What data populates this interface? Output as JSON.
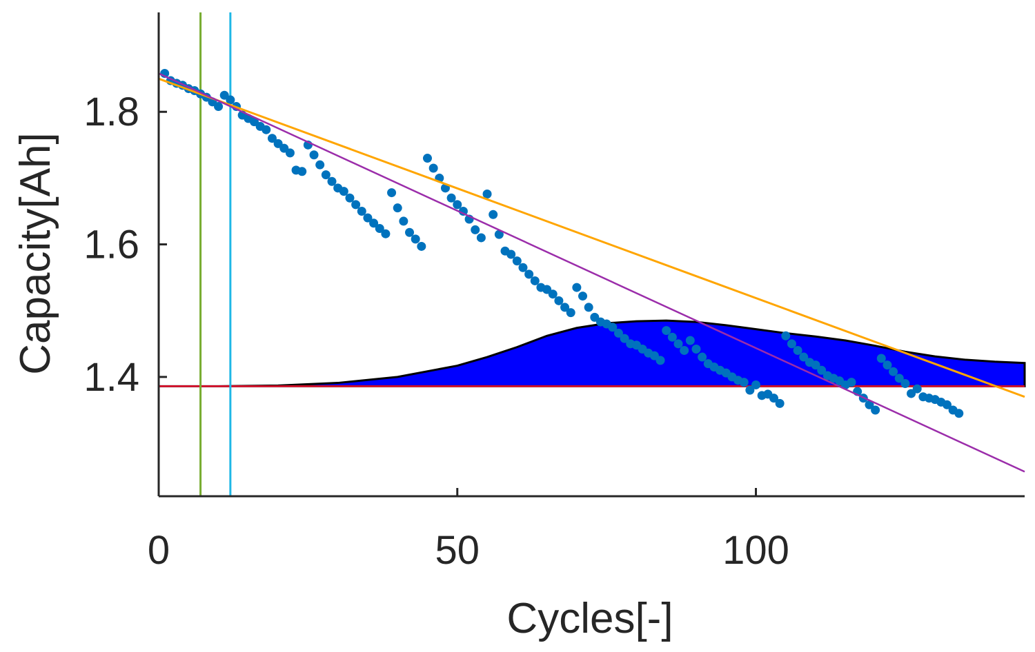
{
  "chart_data": {
    "type": "scatter",
    "xlabel": "Cycles[-]",
    "ylabel": "Capacity[Ah]",
    "xlim": [
      0,
      145
    ],
    "ylim": [
      1.22,
      1.95
    ],
    "xticks": [
      0,
      50,
      100
    ],
    "xtick_labels": [
      "0",
      "50",
      "100"
    ],
    "yticks": [
      1.4,
      1.6,
      1.8
    ],
    "ytick_labels": [
      "1.4",
      "1.6",
      "1.8"
    ],
    "grid": false,
    "colors": {
      "points": "#0072BD",
      "fit_orange": "#FFA500",
      "fit_purple": "#9B2DAA",
      "threshold": "#E8112D",
      "area_fill": "#0000FF",
      "area_edge": "#000000",
      "vline_green": "#77AC30",
      "vline_cyan": "#1EB7E6",
      "axis": "#262626"
    },
    "series": [
      {
        "name": "measured capacity",
        "kind": "scatter",
        "x": [
          1,
          2,
          3,
          4,
          5,
          6,
          7,
          8,
          9,
          10,
          11,
          12,
          13,
          14,
          15,
          16,
          17,
          18,
          19,
          20,
          21,
          22,
          23,
          24,
          25,
          26,
          27,
          28,
          29,
          30,
          31,
          32,
          33,
          34,
          35,
          36,
          37,
          38,
          39,
          40,
          41,
          42,
          43,
          44,
          45,
          46,
          47,
          48,
          49,
          50,
          51,
          52,
          53,
          54,
          55,
          56,
          57,
          58,
          59,
          60,
          61,
          62,
          63,
          64,
          65,
          66,
          67,
          68,
          69,
          70,
          71,
          72,
          73,
          74,
          75,
          76,
          77,
          78,
          79,
          80,
          81,
          82,
          83,
          84,
          85,
          86,
          87,
          88,
          89,
          90,
          91,
          92,
          93,
          94,
          95,
          96,
          97,
          98,
          99,
          100,
          101,
          102,
          103,
          104,
          105,
          106,
          107,
          108,
          109,
          110,
          111,
          112,
          113,
          114,
          115,
          116,
          117,
          118,
          119,
          120,
          121,
          122,
          123,
          124,
          125,
          126,
          127,
          128,
          129,
          130,
          131,
          132,
          133,
          134
        ],
        "y": [
          1.858,
          1.847,
          1.843,
          1.84,
          1.835,
          1.832,
          1.827,
          1.822,
          1.815,
          1.808,
          1.825,
          1.818,
          1.808,
          1.795,
          1.79,
          1.785,
          1.778,
          1.773,
          1.76,
          1.752,
          1.745,
          1.738,
          1.712,
          1.71,
          1.75,
          1.735,
          1.72,
          1.705,
          1.695,
          1.685,
          1.68,
          1.67,
          1.66,
          1.65,
          1.64,
          1.632,
          1.624,
          1.616,
          1.678,
          1.655,
          1.635,
          1.618,
          1.608,
          1.597,
          1.73,
          1.715,
          1.7,
          1.685,
          1.67,
          1.66,
          1.65,
          1.638,
          1.622,
          1.61,
          1.676,
          1.645,
          1.615,
          1.59,
          1.585,
          1.575,
          1.565,
          1.555,
          1.545,
          1.535,
          1.532,
          1.525,
          1.515,
          1.505,
          1.497,
          1.535,
          1.522,
          1.505,
          1.49,
          1.483,
          1.48,
          1.475,
          1.466,
          1.458,
          1.45,
          1.448,
          1.442,
          1.436,
          1.432,
          1.425,
          1.47,
          1.46,
          1.45,
          1.44,
          1.455,
          1.442,
          1.43,
          1.42,
          1.415,
          1.41,
          1.406,
          1.4,
          1.395,
          1.392,
          1.38,
          1.388,
          1.372,
          1.374,
          1.368,
          1.36,
          1.462,
          1.45,
          1.44,
          1.43,
          1.422,
          1.418,
          1.41,
          1.402,
          1.398,
          1.394,
          1.388,
          1.392,
          1.378,
          1.368,
          1.358,
          1.35,
          1.428,
          1.418,
          1.408,
          1.398,
          1.39,
          1.375,
          1.382,
          1.37,
          1.368,
          1.366,
          1.362,
          1.358,
          1.35,
          1.345
        ]
      },
      {
        "name": "fit orange",
        "kind": "line",
        "x": [
          0,
          145
        ],
        "y": [
          1.85,
          1.37
        ]
      },
      {
        "name": "fit purple",
        "kind": "line",
        "x": [
          0,
          145
        ],
        "y": [
          1.858,
          1.257
        ]
      },
      {
        "name": "threshold",
        "kind": "hline",
        "y": 1.386
      },
      {
        "name": "distribution area",
        "kind": "area",
        "baseline": 1.386,
        "x": [
          0,
          10,
          20,
          30,
          40,
          50,
          55,
          60,
          65,
          70,
          75,
          80,
          85,
          90,
          95,
          100,
          105,
          110,
          115,
          120,
          125,
          130,
          135,
          140,
          145
        ],
        "y": [
          1.386,
          1.386,
          1.387,
          1.391,
          1.4,
          1.417,
          1.43,
          1.445,
          1.462,
          1.474,
          1.481,
          1.484,
          1.485,
          1.483,
          1.478,
          1.472,
          1.466,
          1.461,
          1.455,
          1.447,
          1.438,
          1.431,
          1.426,
          1.423,
          1.421
        ]
      },
      {
        "name": "marker green",
        "kind": "vline",
        "x": 7
      },
      {
        "name": "marker cyan",
        "kind": "vline",
        "x": 12
      }
    ]
  }
}
